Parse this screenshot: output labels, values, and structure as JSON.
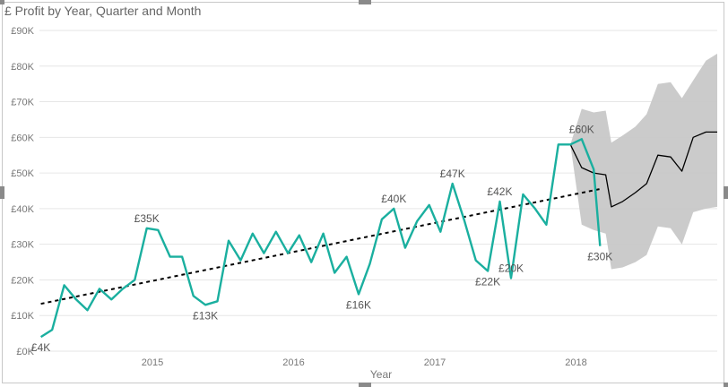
{
  "visual": {
    "title": "£ Profit by Year, Quarter and Month"
  },
  "chart_data": {
    "type": "line",
    "title": "£ Profit by Year, Quarter and Month",
    "xlabel": "Year",
    "ylabel": "",
    "ylim": [
      0,
      90000
    ],
    "y_ticks": [
      "£0K",
      "£10K",
      "£20K",
      "£30K",
      "£40K",
      "£50K",
      "£60K",
      "£70K",
      "£80K",
      "£90K"
    ],
    "y_tick_values": [
      0,
      10000,
      20000,
      30000,
      40000,
      50000,
      60000,
      70000,
      80000,
      90000
    ],
    "x_ticks": [
      "2015",
      "2016",
      "2017",
      "2018"
    ],
    "x_tick_values": [
      2015,
      2016,
      2017,
      2018
    ],
    "xlim": [
      2014.2,
      2019.0
    ],
    "grid": true,
    "colors": {
      "actual": "#1aaf9f",
      "forecast": "#000000",
      "trend": "#000000",
      "band": "#c8c8c8"
    },
    "series": [
      {
        "role": "actual",
        "x": [
          2014.21,
          2014.29,
          2014.375,
          2014.46,
          2014.54,
          2014.625,
          2014.71,
          2014.79,
          2014.875,
          2014.96,
          2015.04,
          2015.125,
          2015.21,
          2015.29,
          2015.375,
          2015.46,
          2015.54,
          2015.625,
          2015.71,
          2015.79,
          2015.875,
          2015.96,
          2016.04,
          2016.125,
          2016.21,
          2016.29,
          2016.375,
          2016.46,
          2016.54,
          2016.625,
          2016.71,
          2016.79,
          2016.875,
          2016.96,
          2017.04,
          2017.125,
          2017.21,
          2017.29,
          2017.375,
          2017.46,
          2017.54,
          2017.625,
          2017.71,
          2017.79,
          2017.875,
          2017.96,
          2018.04,
          2018.125,
          2018.17
        ],
        "values": [
          4000,
          6000,
          18500,
          14500,
          11500,
          17500,
          14500,
          17500,
          20000,
          34500,
          34000,
          26500,
          26500,
          15500,
          13000,
          14000,
          31000,
          25500,
          33000,
          27500,
          33500,
          27500,
          32500,
          25000,
          33000,
          22000,
          26500,
          16000,
          24500,
          37000,
          40000,
          29000,
          36500,
          41000,
          33500,
          47000,
          36500,
          25500,
          22500,
          42000,
          20500,
          44000,
          40000,
          35500,
          58000,
          58000,
          59500,
          51000,
          29500
        ]
      },
      {
        "role": "forecast",
        "x": [
          2017.96,
          2018.04,
          2018.125,
          2018.21,
          2018.25,
          2018.33,
          2018.42,
          2018.5,
          2018.58,
          2018.67,
          2018.75,
          2018.83,
          2018.92,
          2019.0
        ],
        "values": [
          58000,
          51500,
          50000,
          49500,
          40500,
          42000,
          44500,
          47000,
          55000,
          54500,
          50500,
          60000,
          61500,
          61500
        ]
      },
      {
        "role": "trend",
        "x": [
          2014.21,
          2018.17
        ],
        "values": [
          13300,
          45500
        ]
      }
    ],
    "forecast_band": {
      "x": [
        2017.96,
        2018.04,
        2018.125,
        2018.21,
        2018.25,
        2018.33,
        2018.42,
        2018.5,
        2018.58,
        2018.67,
        2018.75,
        2018.83,
        2018.92,
        2019.0
      ],
      "upper": [
        58000,
        68000,
        67000,
        67500,
        58500,
        60500,
        63000,
        66500,
        75000,
        75500,
        71000,
        76000,
        81500,
        83500
      ],
      "lower": [
        58000,
        35500,
        34000,
        33000,
        23000,
        23500,
        25000,
        27000,
        35000,
        34500,
        30000,
        39000,
        40000,
        40500
      ]
    },
    "data_labels": [
      {
        "text": "£4K",
        "x": 2014.21,
        "y": 4000,
        "pos": "below"
      },
      {
        "text": "£35K",
        "x": 2014.96,
        "y": 34500,
        "pos": "above"
      },
      {
        "text": "£13K",
        "x": 2015.375,
        "y": 13000,
        "pos": "below"
      },
      {
        "text": "£16K",
        "x": 2016.46,
        "y": 16000,
        "pos": "below"
      },
      {
        "text": "£40K",
        "x": 2016.71,
        "y": 40000,
        "pos": "above"
      },
      {
        "text": "£47K",
        "x": 2017.125,
        "y": 47000,
        "pos": "above"
      },
      {
        "text": "£22K",
        "x": 2017.375,
        "y": 22500,
        "pos": "below"
      },
      {
        "text": "£42K",
        "x": 2017.46,
        "y": 42000,
        "pos": "above"
      },
      {
        "text": "£20K",
        "x": 2017.54,
        "y": 20500,
        "pos": "above"
      },
      {
        "text": "£60K",
        "x": 2018.04,
        "y": 59500,
        "pos": "above"
      },
      {
        "text": "£30K",
        "x": 2018.17,
        "y": 29500,
        "pos": "below"
      }
    ]
  }
}
